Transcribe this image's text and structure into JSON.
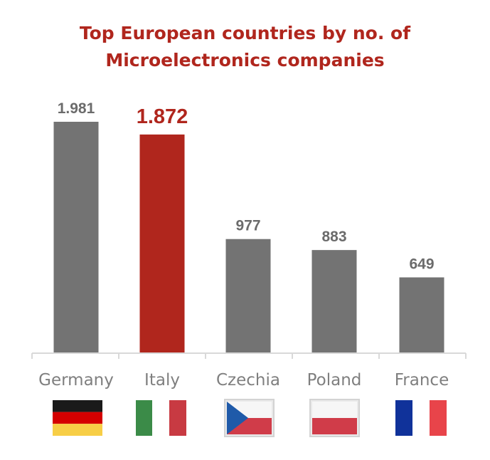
{
  "chart_data": {
    "type": "bar",
    "title_lines": [
      "Top European countries by no. of",
      "Microelectronics companies"
    ],
    "categories": [
      "Germany",
      "Italy",
      "Czechia",
      "Poland",
      "France"
    ],
    "values": [
      1981,
      1872,
      977,
      883,
      649
    ],
    "value_labels": [
      "1.981",
      "1.872",
      "977",
      "883",
      "649"
    ],
    "highlight_index": 1,
    "grid": false,
    "legend": "none",
    "ylim": [
      0,
      2000
    ]
  },
  "colors": {
    "title": "#b0261d",
    "bar_default": "#737373",
    "bar_highlight": "#b0261d",
    "label_default": "#6b6b6b",
    "label_highlight": "#b0261d",
    "category_text": "#7f7f7f",
    "axis": "#d9d9d9"
  },
  "flags": [
    {
      "country": "Germany",
      "icon": "germany-flag-icon"
    },
    {
      "country": "Italy",
      "icon": "italy-flag-icon"
    },
    {
      "country": "Czechia",
      "icon": "czechia-flag-icon"
    },
    {
      "country": "Poland",
      "icon": "poland-flag-icon"
    },
    {
      "country": "France",
      "icon": "france-flag-icon"
    }
  ]
}
